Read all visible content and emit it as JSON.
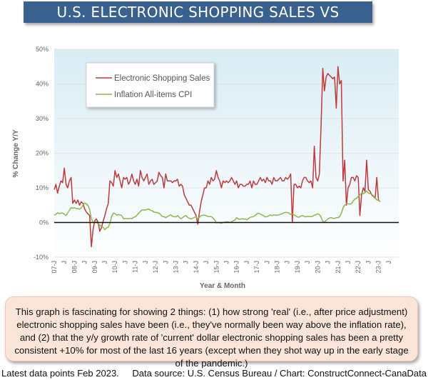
{
  "title": "U.S. ELECTRONIC SHOPPING SALES VS INFLATION",
  "note": "This graph is fascinating for showing 2 things: (1) how strong 'real' (i.e., after price adjustment) electronic shopping sales have been (i.e., they've normally been way above the inflation rate), and (2) that the y/y growth rate of 'current' dollar electronic shopping sales has been a pretty consistent +10% for most of the last 16 years (except when they shot way up in the early stage of the pandemic.)",
  "footer": {
    "left": "Latest data points Feb 2023.",
    "right": "Data source: U.S. Census Bureau / Chart: ConstructConnect-CanaData"
  },
  "chart_data": {
    "type": "line",
    "xlabel": "Year & Month",
    "ylabel": "% Change Y/Y",
    "ylim": [
      -10,
      50
    ],
    "y_ticks": [
      -10,
      0,
      10,
      20,
      30,
      40,
      50
    ],
    "y_tick_labels": [
      "-10%",
      "0%",
      "10%",
      "20%",
      "30%",
      "40%",
      "50%"
    ],
    "x_range": [
      "2007-01",
      "2024-01"
    ],
    "x_tick_labels": [
      "07-J",
      "J",
      "08-J",
      "J",
      "09-J",
      "J",
      "10-J",
      "J",
      "11-J",
      "J",
      "12-J",
      "J",
      "13-J",
      "J",
      "14-J",
      "J",
      "15-J",
      "J",
      "16-J",
      "J",
      "17-J",
      "J",
      "18-J",
      "J",
      "19-J",
      "J",
      "20-J",
      "J",
      "21-J",
      "J",
      "22-J",
      "J",
      "23-J",
      "J"
    ],
    "grid": "horizontal",
    "legend_placement": "top-left",
    "x_unit": "monthly values listed by year, January first",
    "series": [
      {
        "name": "Electronic Shopping Sales",
        "color": "#c0393b",
        "values_by_year": {
          "2007": [
            9.5,
            11,
            8.5,
            10.5,
            12,
            11.5,
            15.7,
            11,
            10,
            12,
            13,
            5.5
          ],
          "2008": [
            6.5,
            5.5,
            6.5,
            5,
            6,
            5.5,
            4,
            3,
            2.5,
            2,
            -7,
            -2
          ],
          "2009": [
            0.5,
            1,
            0,
            -2.5,
            -1.5,
            0.5,
            2,
            4,
            5.5,
            12,
            11.5,
            10.5
          ],
          "2010": [
            15,
            13,
            14,
            12,
            10,
            13,
            12.5,
            13,
            11,
            12,
            14,
            12
          ],
          "2011": [
            11,
            12.5,
            10.5,
            15,
            13,
            12,
            13,
            14,
            11,
            12,
            12.5,
            11
          ],
          "2012": [
            11.5,
            12,
            14.5,
            13.5,
            13,
            10,
            14,
            12,
            12,
            12,
            11.5,
            12
          ],
          "2013": [
            12,
            12.5,
            10.5,
            11,
            10.5,
            8,
            7,
            6,
            5,
            5,
            4,
            3
          ],
          "2014": [
            2,
            -0.5,
            3,
            6,
            8,
            10,
            10,
            12,
            11,
            13,
            12,
            12.5
          ],
          "2015": [
            15,
            13,
            12,
            10,
            12,
            11.5,
            12,
            11.5,
            12,
            13,
            12,
            11
          ],
          "2016": [
            12,
            10,
            11,
            11,
            10.5,
            10.5,
            11,
            11,
            12,
            10,
            12,
            11
          ],
          "2017": [
            11,
            12,
            13,
            12,
            12.5,
            11.5,
            13,
            12,
            12,
            11,
            13,
            12
          ],
          "2018": [
            12,
            12.5,
            13,
            12,
            12,
            13,
            12.5,
            13,
            14,
            0,
            11,
            11
          ],
          "2019": [
            10,
            10.5,
            10,
            12,
            13,
            13,
            12,
            11.5,
            12,
            10,
            22,
            13
          ],
          "2020": [
            12,
            14,
            28,
            44.5,
            38,
            42,
            43,
            42.5,
            42,
            41.5,
            42,
            33
          ],
          "2021": [
            45,
            40,
            41,
            12,
            18,
            5,
            10,
            11,
            13,
            13,
            12,
            13.5
          ],
          "2022": [
            13,
            2,
            8,
            10,
            9,
            18,
            9.5,
            9,
            8,
            7.5,
            7,
            13
          ],
          "2023": [
            6.5,
            6
          ]
        }
      },
      {
        "name": "Inflation All-items CPI",
        "color": "#8db84a",
        "values_by_year": {
          "2007": [
            2.1,
            2.4,
            2.8,
            2.6,
            2.7,
            2.7,
            2.4,
            2.0,
            2.8,
            3.5,
            4.3,
            4.1
          ],
          "2008": [
            4.3,
            4.0,
            4.0,
            3.9,
            4.2,
            5.0,
            5.6,
            5.4,
            4.9,
            3.7,
            1.1,
            0.1
          ],
          "2009": [
            0.0,
            0.2,
            -0.4,
            -0.7,
            -1.3,
            -1.4,
            -2.1,
            -1.5,
            -1.3,
            -0.2,
            1.8,
            2.7
          ],
          "2010": [
            2.6,
            2.1,
            2.3,
            2.2,
            2.0,
            1.1,
            1.2,
            1.1,
            1.1,
            1.2,
            1.1,
            1.5
          ],
          "2011": [
            1.6,
            2.1,
            2.7,
            3.2,
            3.6,
            3.6,
            3.6,
            3.8,
            3.9,
            3.5,
            3.4,
            3.0
          ],
          "2012": [
            2.9,
            2.9,
            2.7,
            2.3,
            1.7,
            1.7,
            1.4,
            1.7,
            2.0,
            2.2,
            1.8,
            1.7
          ],
          "2013": [
            1.6,
            2.0,
            1.5,
            1.1,
            1.4,
            1.8,
            2.0,
            1.5,
            1.2,
            1.0,
            1.2,
            1.5
          ],
          "2014": [
            1.6,
            1.1,
            1.5,
            2.0,
            2.1,
            2.1,
            2.0,
            1.7,
            1.7,
            1.7,
            1.3,
            0.8
          ],
          "2015": [
            -0.1,
            0.0,
            -0.1,
            -0.2,
            0.0,
            0.1,
            0.2,
            0.2,
            0.0,
            0.2,
            0.5,
            0.7
          ],
          "2016": [
            1.4,
            1.0,
            0.9,
            1.1,
            1.0,
            1.0,
            0.8,
            1.1,
            1.5,
            1.6,
            1.7,
            2.1
          ],
          "2017": [
            2.5,
            2.7,
            2.4,
            2.2,
            1.9,
            1.6,
            1.7,
            1.9,
            2.2,
            2.0,
            2.2,
            2.1
          ],
          "2018": [
            2.1,
            2.2,
            2.4,
            2.5,
            2.8,
            2.9,
            2.9,
            2.7,
            2.3,
            2.5,
            2.2,
            1.9
          ],
          "2019": [
            1.6,
            1.5,
            1.9,
            2.0,
            1.8,
            1.6,
            1.8,
            1.7,
            1.7,
            1.8,
            2.1,
            2.3
          ],
          "2020": [
            2.5,
            2.3,
            1.5,
            0.3,
            0.1,
            0.6,
            1.0,
            1.3,
            1.4,
            1.2,
            1.2,
            1.4
          ],
          "2021": [
            1.4,
            1.7,
            2.6,
            4.2,
            5.0,
            5.4,
            5.4,
            5.3,
            5.4,
            6.2,
            6.8,
            7.0
          ],
          "2022": [
            7.5,
            7.9,
            8.5,
            8.3,
            8.6,
            9.1,
            8.5,
            8.3,
            8.2,
            7.7,
            7.1,
            6.5
          ],
          "2023": [
            6.4,
            6.0
          ]
        }
      }
    ]
  }
}
